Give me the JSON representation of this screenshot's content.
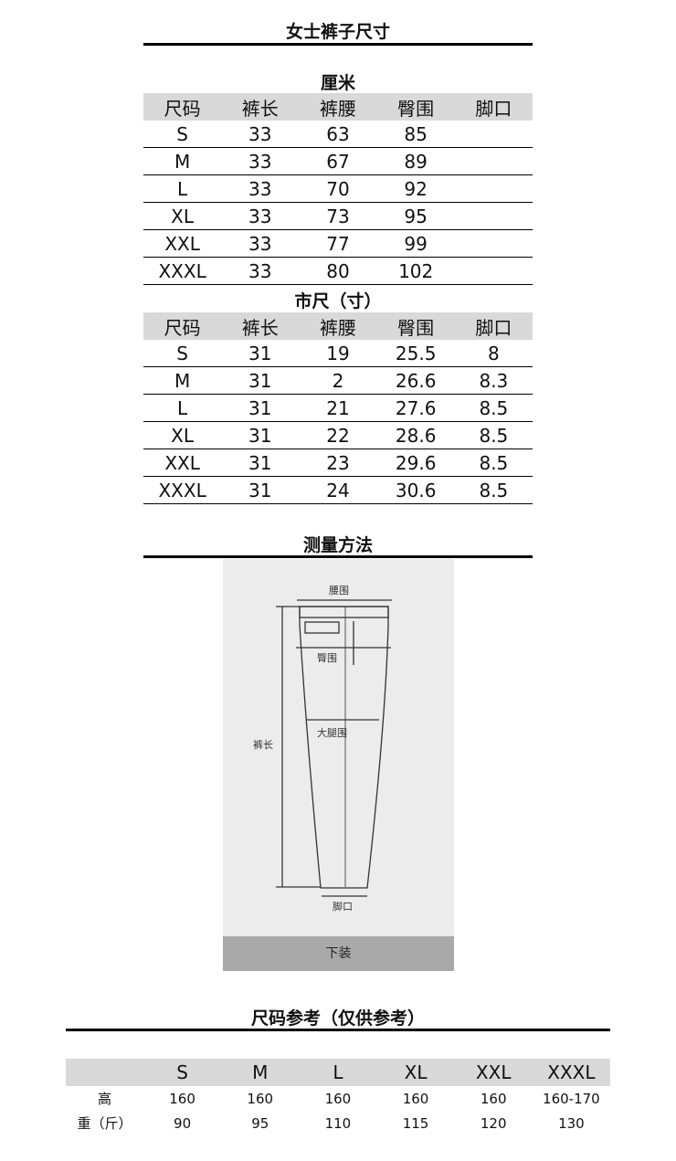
{
  "title": "女士裤子尺寸",
  "cm": {
    "heading": "厘米",
    "columns": [
      "尺码",
      "裤长",
      "裤腰",
      "臀围",
      "脚口"
    ],
    "rows": [
      [
        "S",
        "33",
        "63",
        "85",
        ""
      ],
      [
        "M",
        "33",
        "67",
        "89",
        ""
      ],
      [
        "L",
        "33",
        "70",
        "92",
        ""
      ],
      [
        "XL",
        "33",
        "73",
        "95",
        ""
      ],
      [
        "XXL",
        "33",
        "77",
        "99",
        ""
      ],
      [
        "XXXL",
        "33",
        "80",
        "102",
        ""
      ]
    ]
  },
  "inch": {
    "heading": "市尺（寸）",
    "columns": [
      "尺码",
      "裤长",
      "裤腰",
      "臀围",
      "脚口"
    ],
    "rows": [
      [
        "S",
        "31",
        "19",
        "25.5",
        "8"
      ],
      [
        "M",
        "31",
        "2",
        "26.6",
        "8.3"
      ],
      [
        "L",
        "31",
        "21",
        "27.6",
        "8.5"
      ],
      [
        "XL",
        "31",
        "22",
        "28.6",
        "8.5"
      ],
      [
        "XXL",
        "31",
        "23",
        "29.6",
        "8.5"
      ],
      [
        "XXXL",
        "31",
        "24",
        "30.6",
        "8.5"
      ]
    ]
  },
  "method": {
    "heading": "测量方法",
    "labels": {
      "waist": "腰围",
      "hip": "臀围",
      "thigh": "大腿围",
      "length": "裤长",
      "hem": "脚口"
    },
    "band": "下装"
  },
  "reference": {
    "heading": "尺码参考（仅供参考）",
    "columns": [
      "",
      "S",
      "M",
      "L",
      "XL",
      "XXL",
      "XXXL"
    ],
    "rows": [
      [
        "高",
        "160",
        "160",
        "160",
        "160",
        "160",
        "160-170"
      ],
      [
        "重（斤）",
        "90",
        "95",
        "110",
        "115",
        "120",
        "130"
      ]
    ]
  }
}
